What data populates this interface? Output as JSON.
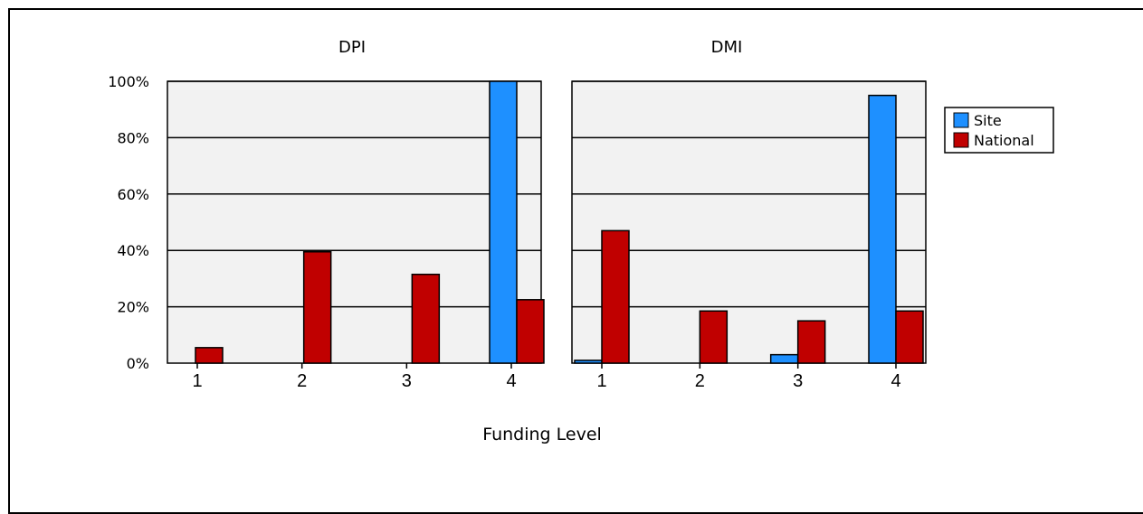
{
  "chart_data": {
    "type": "bar",
    "xlabel": "Funding Level",
    "ylabel": "",
    "ylim": [
      0,
      100
    ],
    "y_ticks": [
      "0%",
      "20%",
      "40%",
      "60%",
      "80%",
      "100%"
    ],
    "legend_position": "top-right",
    "grid": true,
    "categories": [
      "1",
      "2",
      "3",
      "4"
    ],
    "panels": [
      {
        "title": "DPI",
        "series": [
          {
            "name": "Site",
            "values": [
              0,
              0,
              0,
              100
            ]
          },
          {
            "name": "National",
            "values": [
              5.5,
              39.5,
              31.5,
              22.5
            ]
          }
        ]
      },
      {
        "title": "DMI",
        "series": [
          {
            "name": "Site",
            "values": [
              1,
              0,
              3,
              95
            ]
          },
          {
            "name": "National",
            "values": [
              47,
              18.5,
              15,
              18.5
            ]
          }
        ]
      }
    ],
    "legend": [
      {
        "name": "Site",
        "color": "#1e90ff"
      },
      {
        "name": "National",
        "color": "#c00000"
      }
    ],
    "colors": {
      "Site": "#1e90ff",
      "National": "#c00000",
      "plot_background": "#f2f2f2"
    }
  }
}
